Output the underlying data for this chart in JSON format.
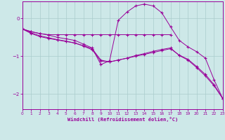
{
  "bg_color": "#cde8e8",
  "line_color": "#990099",
  "grid_color": "#aacccc",
  "xlabel": "Windchill (Refroidissement éolien,°C)",
  "xlim": [
    0,
    23
  ],
  "ylim": [
    -2.4,
    0.45
  ],
  "xticks": [
    0,
    1,
    2,
    3,
    4,
    5,
    6,
    7,
    8,
    9,
    10,
    11,
    12,
    13,
    14,
    15,
    16,
    17,
    18,
    19,
    20,
    21,
    22,
    23
  ],
  "yticks": [
    0,
    -1,
    -2
  ],
  "line1_x": [
    0,
    1,
    2,
    3,
    4,
    5,
    6,
    7,
    8,
    9,
    10,
    11,
    12,
    13,
    14,
    15,
    16,
    17,
    18,
    19,
    20,
    21,
    22,
    23
  ],
  "line1_y": [
    -0.28,
    -0.4,
    -0.48,
    -0.53,
    -0.57,
    -0.61,
    -0.65,
    -0.72,
    -0.8,
    -1.1,
    -1.15,
    -1.1,
    -1.05,
    -0.98,
    -0.93,
    -0.87,
    -0.82,
    -0.78,
    -0.98,
    -1.1,
    -1.3,
    -1.52,
    -1.78,
    -2.12
  ],
  "line2_x": [
    0,
    1,
    2,
    3,
    4,
    5,
    6,
    7,
    8,
    9,
    10,
    11,
    12,
    13,
    14,
    15,
    16,
    17
  ],
  "line2_y": [
    -0.28,
    -0.35,
    -0.4,
    -0.43,
    -0.43,
    -0.43,
    -0.43,
    -0.43,
    -0.43,
    -0.43,
    -0.43,
    -0.43,
    -0.43,
    -0.43,
    -0.43,
    -0.43,
    -0.43,
    -0.43
  ],
  "line3_x": [
    0,
    1,
    2,
    3,
    4,
    5,
    6,
    7,
    8,
    9,
    10,
    11,
    12,
    13,
    14,
    15,
    16,
    17,
    18,
    19,
    20,
    21,
    22,
    23
  ],
  "line3_y": [
    -0.28,
    -0.35,
    -0.4,
    -0.44,
    -0.5,
    -0.54,
    -0.58,
    -0.68,
    -0.78,
    -1.22,
    -1.12,
    -0.05,
    0.17,
    0.33,
    0.38,
    0.33,
    0.15,
    -0.22,
    -0.58,
    -0.75,
    -0.88,
    -1.05,
    -1.62,
    -2.12
  ],
  "line4_x": [
    0,
    1,
    2,
    3,
    4,
    5,
    6,
    7,
    8,
    9,
    10,
    11,
    12,
    13,
    14,
    15,
    16,
    17,
    18,
    19,
    20,
    21,
    22,
    23
  ],
  "line4_y": [
    -0.28,
    -0.38,
    -0.46,
    -0.51,
    -0.56,
    -0.6,
    -0.65,
    -0.73,
    -0.83,
    -1.13,
    -1.15,
    -1.1,
    -1.05,
    -1.0,
    -0.95,
    -0.9,
    -0.85,
    -0.8,
    -0.97,
    -1.08,
    -1.27,
    -1.48,
    -1.75,
    -2.12
  ]
}
